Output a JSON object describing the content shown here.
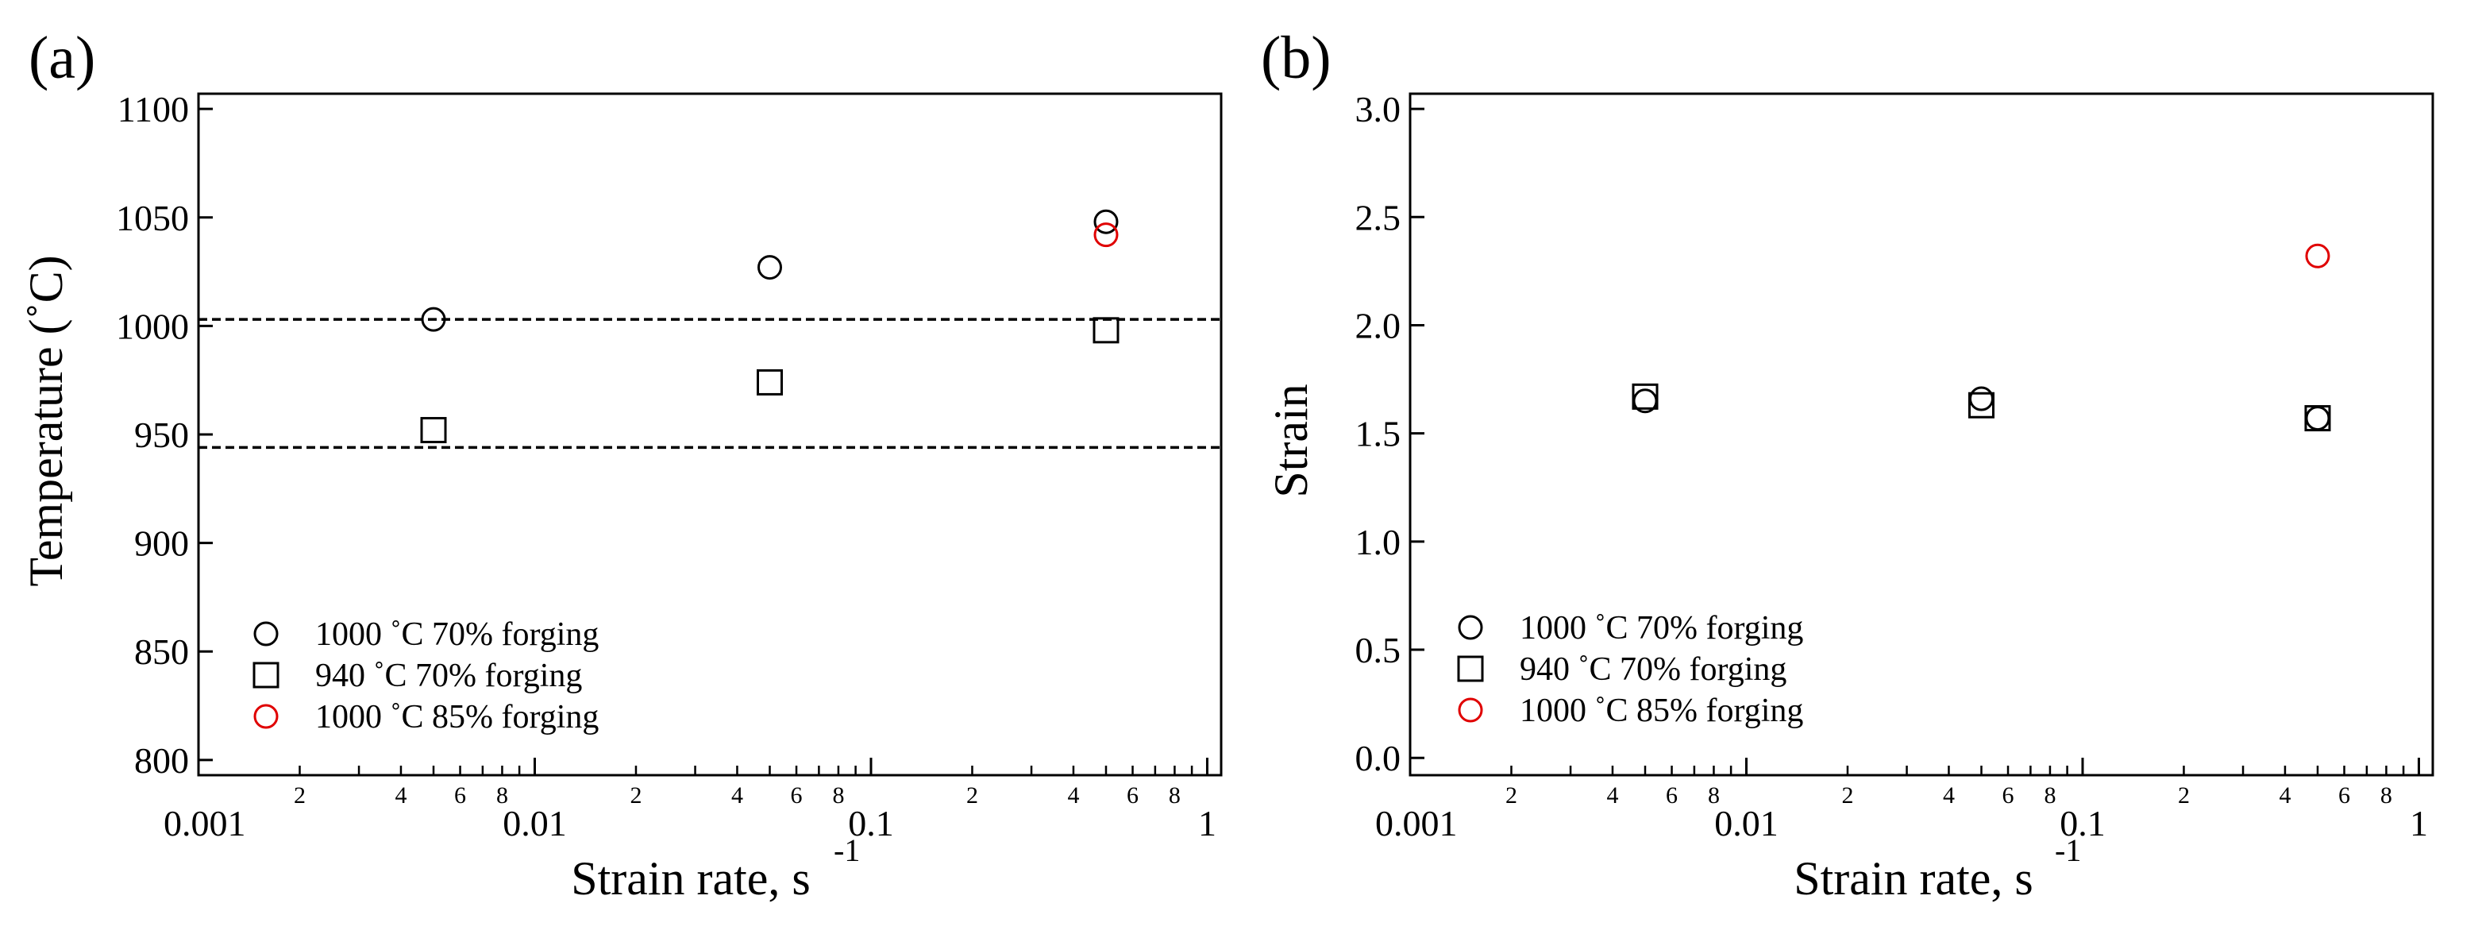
{
  "chart_data": [
    {
      "panel_label": "(a)",
      "type": "scatter",
      "xlabel": "Strain rate, s",
      "xlabel_sup": "-1",
      "ylabel": "Temperature (˚C)",
      "xscale": "log",
      "xlim": [
        0.001,
        1.1
      ],
      "ylim": [
        793,
        1107
      ],
      "xticks_major": [
        0.001,
        0.01,
        0.1,
        1
      ],
      "xtick_labels": [
        "0.001",
        "0.01",
        "0.1",
        "1"
      ],
      "xticks_minor_labels": [
        "2",
        "4",
        "6",
        "8"
      ],
      "yticks": [
        800,
        850,
        900,
        950,
        1000,
        1050,
        1100
      ],
      "ytick_labels": [
        "800",
        "850",
        "900",
        "950",
        "1000",
        "1050",
        "1100"
      ],
      "hlines": [
        1003,
        944
      ],
      "legend_position": "lower-left",
      "series": [
        {
          "name": "1000 ˚C 70% forging",
          "marker": "circle",
          "color": "#000000",
          "x": [
            0.005,
            0.05,
            0.5
          ],
          "y": [
            1003,
            1027,
            1048
          ]
        },
        {
          "name": "940 ˚C 70% forging",
          "marker": "square",
          "color": "#000000",
          "x": [
            0.005,
            0.05,
            0.5
          ],
          "y": [
            952,
            974,
            998
          ]
        },
        {
          "name": "1000 ˚C 85% forging",
          "marker": "circle",
          "color": "#e00000",
          "x": [
            0.5
          ],
          "y": [
            1042
          ]
        }
      ]
    },
    {
      "panel_label": "(b)",
      "type": "scatter",
      "xlabel": "Strain rate, s",
      "xlabel_sup": "-1",
      "ylabel": "Strain",
      "xscale": "log",
      "xlim": [
        0.001,
        1.1
      ],
      "ylim": [
        -0.08,
        3.07
      ],
      "xticks_major": [
        0.001,
        0.01,
        0.1,
        1
      ],
      "xtick_labels": [
        "0.001",
        "0.01",
        "0.1",
        "1"
      ],
      "xticks_minor_labels": [
        "2",
        "4",
        "6",
        "8"
      ],
      "yticks": [
        0.0,
        0.5,
        1.0,
        1.5,
        2.0,
        2.5,
        3.0
      ],
      "ytick_labels": [
        "0.0",
        "0.5",
        "1.0",
        "1.5",
        "2.0",
        "2.5",
        "3.0"
      ],
      "hlines": [],
      "legend_position": "lower-left",
      "series": [
        {
          "name": "1000 ˚C 70% forging",
          "marker": "circle",
          "color": "#000000",
          "x": [
            0.005,
            0.05,
            0.5
          ],
          "y": [
            1.65,
            1.66,
            1.57
          ]
        },
        {
          "name": "940 ˚C 70% forging",
          "marker": "square",
          "color": "#000000",
          "x": [
            0.005,
            0.05,
            0.5
          ],
          "y": [
            1.67,
            1.63,
            1.57
          ]
        },
        {
          "name": "1000 ˚C 85% forging",
          "marker": "circle",
          "color": "#e00000",
          "x": [
            0.5
          ],
          "y": [
            2.32
          ]
        }
      ]
    }
  ]
}
